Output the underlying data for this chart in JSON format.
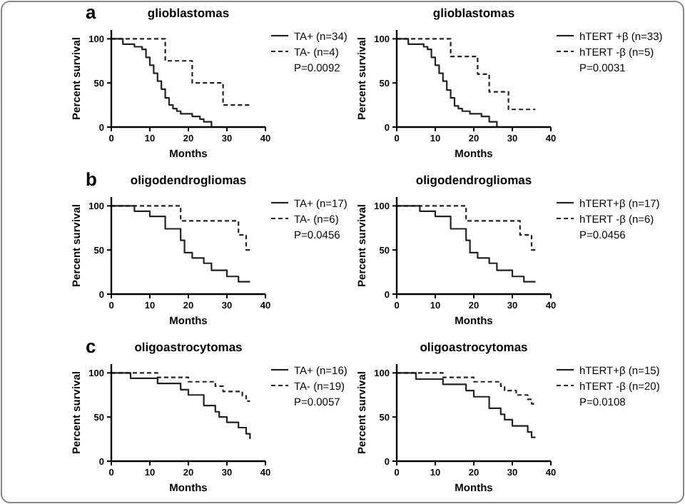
{
  "chart_data": [
    {
      "type": "step",
      "title": "glioblastomas",
      "xlabel": "Months",
      "ylabel": "Percent survival",
      "annotations": [
        "a",
        "P=0.0092"
      ],
      "xlim": [
        0,
        40
      ],
      "ylim": [
        0,
        110
      ],
      "xticks": [
        0,
        10,
        20,
        30,
        40
      ],
      "yticks": [
        0,
        50,
        100
      ],
      "legend": "top right",
      "series": [
        {
          "name": "TA+ (n=34)",
          "color": "#222222",
          "line_style": "solid",
          "x": [
            0,
            3,
            6,
            8,
            9,
            10,
            11,
            12,
            13,
            14,
            15,
            16,
            17,
            18,
            21,
            23,
            24,
            26
          ],
          "values": [
            100,
            94,
            91,
            88,
            79,
            70,
            61,
            52,
            43,
            33,
            25,
            21,
            18,
            15,
            12,
            9,
            6,
            0
          ]
        },
        {
          "name": "TA- (n=4)",
          "color": "#222222",
          "line_style": "dashed",
          "x": [
            0,
            14,
            21,
            29,
            36
          ],
          "values": [
            100,
            75,
            50,
            25,
            25
          ]
        }
      ]
    },
    {
      "type": "step",
      "title": "glioblastomas",
      "xlabel": "Months",
      "ylabel": "Percent survival",
      "annotations": [
        "P=0.0031"
      ],
      "xlim": [
        0,
        40
      ],
      "ylim": [
        0,
        110
      ],
      "xticks": [
        0,
        10,
        20,
        30,
        40
      ],
      "yticks": [
        0,
        50,
        100
      ],
      "legend": "top right",
      "series": [
        {
          "name": "hTERT +β (n=33)",
          "color": "#222222",
          "line_style": "solid",
          "x": [
            0,
            3,
            7,
            8,
            9,
            10,
            11,
            12,
            13,
            14,
            15,
            16,
            17,
            19,
            22,
            24,
            26
          ],
          "values": [
            100,
            94,
            91,
            88,
            79,
            70,
            61,
            52,
            42,
            33,
            24,
            21,
            18,
            15,
            12,
            6,
            0
          ]
        },
        {
          "name": "hTERT -β (n=5)",
          "color": "#222222",
          "line_style": "dashed",
          "x": [
            0,
            14,
            21,
            24,
            29,
            36
          ],
          "values": [
            100,
            80,
            60,
            40,
            20,
            20
          ]
        }
      ]
    },
    {
      "type": "step",
      "title": "oligodendrogliomas",
      "xlabel": "Months",
      "ylabel": "Percent survival",
      "annotations": [
        "b",
        "P=0.0456"
      ],
      "xlim": [
        0,
        40
      ],
      "ylim": [
        0,
        110
      ],
      "xticks": [
        0,
        10,
        20,
        30,
        40
      ],
      "yticks": [
        0,
        50,
        100
      ],
      "legend": "top right",
      "series": [
        {
          "name": "TA+ (n=17)",
          "color": "#222222",
          "line_style": "solid",
          "x": [
            0,
            6,
            10,
            14,
            18,
            19,
            21,
            24,
            26,
            30,
            33,
            36
          ],
          "values": [
            100,
            94,
            88,
            74,
            61,
            47,
            41,
            35,
            27,
            20,
            14,
            14
          ]
        },
        {
          "name": "TA- (n=6)",
          "color": "#222222",
          "line_style": "dashed",
          "x": [
            0,
            18,
            33,
            35,
            36
          ],
          "values": [
            100,
            83,
            67,
            50,
            50
          ]
        }
      ]
    },
    {
      "type": "step",
      "title": "oligodendrogliomas",
      "xlabel": "Months",
      "ylabel": "Percent survival",
      "annotations": [
        "P=0.0456"
      ],
      "xlim": [
        0,
        40
      ],
      "ylim": [
        0,
        110
      ],
      "xticks": [
        0,
        10,
        20,
        30,
        40
      ],
      "yticks": [
        0,
        50,
        100
      ],
      "legend": "top right",
      "series": [
        {
          "name": "hTERT+β (n=17)",
          "color": "#222222",
          "line_style": "solid",
          "x": [
            0,
            6,
            10,
            14,
            18,
            19,
            21,
            24,
            26,
            30,
            33,
            36
          ],
          "values": [
            100,
            94,
            88,
            74,
            61,
            47,
            41,
            35,
            27,
            20,
            14,
            14
          ]
        },
        {
          "name": "hTERT -β (n=6)",
          "color": "#222222",
          "line_style": "dashed",
          "x": [
            0,
            18,
            32,
            35,
            36
          ],
          "values": [
            100,
            83,
            67,
            50,
            50
          ]
        }
      ]
    },
    {
      "type": "step",
      "title": "oligoastrocytomas",
      "xlabel": "Months",
      "ylabel": "Percent survival",
      "annotations": [
        "c",
        "P=0.0057"
      ],
      "xlim": [
        0,
        40
      ],
      "ylim": [
        0,
        110
      ],
      "xticks": [
        0,
        10,
        20,
        30,
        40
      ],
      "yticks": [
        0,
        50,
        100
      ],
      "legend": "top right",
      "series": [
        {
          "name": "TA+ (n=16)",
          "color": "#222222",
          "line_style": "solid",
          "x": [
            0,
            5,
            12,
            18,
            20,
            24,
            27,
            28,
            30,
            33,
            35,
            36
          ],
          "values": [
            100,
            94,
            88,
            81,
            75,
            63,
            56,
            50,
            44,
            38,
            31,
            25
          ]
        },
        {
          "name": "TA- (n=19)",
          "color": "#222222",
          "line_style": "dashed",
          "x": [
            0,
            12,
            20,
            27,
            29,
            34,
            35,
            36
          ],
          "values": [
            100,
            95,
            90,
            85,
            79,
            74,
            68,
            68
          ]
        }
      ]
    },
    {
      "type": "step",
      "title": "oligoastrocytomas",
      "xlabel": "Months",
      "ylabel": "Percent survival",
      "annotations": [
        "P=0.0108"
      ],
      "xlim": [
        0,
        40
      ],
      "ylim": [
        0,
        110
      ],
      "xticks": [
        0,
        10,
        20,
        30,
        40
      ],
      "yticks": [
        0,
        50,
        100
      ],
      "legend": "top right",
      "series": [
        {
          "name": "hTERT+β (n=15)",
          "color": "#222222",
          "line_style": "solid",
          "x": [
            0,
            5,
            12,
            18,
            20,
            24,
            27,
            28,
            30,
            34,
            35,
            36
          ],
          "values": [
            100,
            93,
            87,
            80,
            73,
            60,
            53,
            47,
            40,
            33,
            27,
            27
          ]
        },
        {
          "name": "hTERT -β (n=20)",
          "color": "#222222",
          "line_style": "dashed",
          "x": [
            0,
            12,
            20,
            27,
            28,
            31,
            34,
            35,
            36
          ],
          "values": [
            100,
            95,
            90,
            85,
            80,
            75,
            70,
            65,
            65
          ]
        }
      ]
    }
  ]
}
